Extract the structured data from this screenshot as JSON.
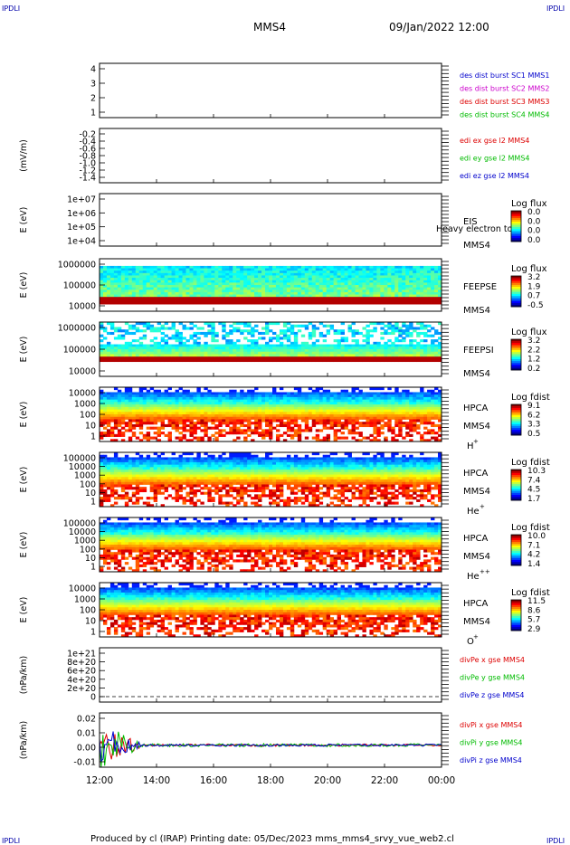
{
  "corner_label": "IPDLI",
  "header": {
    "spacecraft": "MMS4",
    "datetime": "09/Jan/2022 12:00"
  },
  "footer": {
    "text": "Produced by cl (IRAP)   Printing date: 05/Dec/2023   mms_mms4_srvy_vue_web2.cl"
  },
  "colors": {
    "red": "#dd0000",
    "green": "#00bb00",
    "blue": "#0000cc",
    "magenta": "#cc00cc"
  },
  "chart_data": {
    "type": "heatmap",
    "x_axis": {
      "range": [
        "12:00",
        "00:00"
      ],
      "tick_labels": [
        "12:00",
        "14:00",
        "16:00",
        "18:00",
        "20:00",
        "22:00",
        "00:00"
      ]
    },
    "panels": [
      {
        "id": "des-dist",
        "kind": "empty",
        "ylabel": "",
        "yticks": [
          "4",
          "3",
          "2",
          "1"
        ],
        "legend": [
          {
            "text": "des dist burst SC1 MMS1",
            "color": "#0000cc"
          },
          {
            "text": "des dist burst SC2 MMS2",
            "color": "#cc00cc"
          },
          {
            "text": "des dist burst SC3 MMS3",
            "color": "#dd0000"
          },
          {
            "text": "des dist burst SC4 MMS4",
            "color": "#00bb00"
          }
        ]
      },
      {
        "id": "edi",
        "kind": "empty",
        "ylabel": "(mV/m)",
        "yticks": [
          "-0.2",
          "-0.4",
          "-0.6",
          "-0.8",
          "-1.0",
          "-1.2",
          "-1.4"
        ],
        "legend": [
          {
            "text": "edi ex gse l2 MMS4",
            "color": "#dd0000"
          },
          {
            "text": "edi ey gse l2 MMS4",
            "color": "#00bb00"
          },
          {
            "text": "edi ez gse l2 MMS4",
            "color": "#0000cc"
          }
        ]
      },
      {
        "id": "eis",
        "kind": "empty",
        "ylabel": "E (eV)",
        "yticks": [
          "1e+07",
          "1e+06",
          "1e+05",
          "1e+04"
        ],
        "labels": [
          "EIS",
          "MMS4"
        ],
        "overlay": "Heavy electron to",
        "colorbar": {
          "title": "Log flux",
          "ticks": [
            "0.0",
            "0.0",
            "0.0",
            "0.0"
          ]
        }
      },
      {
        "id": "feepse",
        "kind": "spectrogram",
        "ylabel": "E (eV)",
        "yticks": [
          "1000000",
          "100000",
          "10000"
        ],
        "labels": [
          "FEEPSE",
          "MMS4"
        ],
        "colorbar": {
          "title": "Log flux",
          "ticks": [
            "3.2",
            "1.9",
            "0.7",
            "-0.5"
          ]
        }
      },
      {
        "id": "feepsi",
        "kind": "spectrogram",
        "ylabel": "E (eV)",
        "yticks": [
          "1000000",
          "100000",
          "10000"
        ],
        "labels": [
          "FEEPSI",
          "MMS4"
        ],
        "colorbar": {
          "title": "Log flux",
          "ticks": [
            "3.2",
            "2.2",
            "1.2",
            "0.2"
          ]
        }
      },
      {
        "id": "hpca-h",
        "kind": "spectrogram",
        "ylabel": "E (eV)",
        "yticks": [
          "10000",
          "1000",
          "100",
          "10",
          "1"
        ],
        "labels": [
          "HPCA",
          "MMS4"
        ],
        "species": "H",
        "species_sup": "+",
        "colorbar": {
          "title": "Log fdist",
          "ticks": [
            "9.1",
            "6.2",
            "3.3",
            "0.5"
          ]
        }
      },
      {
        "id": "hpca-he",
        "kind": "spectrogram",
        "ylabel": "E (eV)",
        "yticks": [
          "100000",
          "10000",
          "1000",
          "100",
          "10",
          "1"
        ],
        "labels": [
          "HPCA",
          "MMS4"
        ],
        "species": "He",
        "species_sup": "+",
        "colorbar": {
          "title": "Log fdist",
          "ticks": [
            "10.3",
            "7.4",
            "4.5",
            "1.7"
          ]
        }
      },
      {
        "id": "hpca-hepp",
        "kind": "spectrogram",
        "ylabel": "E (eV)",
        "yticks": [
          "100000",
          "10000",
          "1000",
          "100",
          "10",
          "1"
        ],
        "labels": [
          "HPCA",
          "MMS4"
        ],
        "species": "He",
        "species_sup": "++",
        "colorbar": {
          "title": "Log fdist",
          "ticks": [
            "10.0",
            "7.1",
            "4.2",
            "1.4"
          ]
        }
      },
      {
        "id": "hpca-o",
        "kind": "spectrogram",
        "ylabel": "E (eV)",
        "yticks": [
          "10000",
          "1000",
          "100",
          "10",
          "1"
        ],
        "labels": [
          "HPCA",
          "MMS4"
        ],
        "species": "O",
        "species_sup": "+",
        "colorbar": {
          "title": "Log fdist",
          "ticks": [
            "11.5",
            "8.6",
            "5.7",
            "2.9"
          ]
        }
      },
      {
        "id": "divpe",
        "kind": "empty",
        "ylabel": "(nPa/km)",
        "yticks": [
          "1e+21",
          "8e+20",
          "6e+20",
          "4e+20",
          "2e+20",
          "0"
        ],
        "legend": [
          {
            "text": "divPe x gse MMS4",
            "color": "#dd0000"
          },
          {
            "text": "divPe y gse MMS4",
            "color": "#00bb00"
          },
          {
            "text": "divPe z gse MMS4",
            "color": "#0000cc"
          }
        ]
      },
      {
        "id": "divpi",
        "kind": "line",
        "ylabel": "(nPa/km)",
        "yticks": [
          "0.02",
          "0.01",
          "0.00",
          "-0.01"
        ],
        "ylim": [
          -0.015,
          0.022
        ],
        "legend": [
          {
            "text": "divPi x gse MMS4",
            "color": "#dd0000"
          },
          {
            "text": "divPi y gse MMS4",
            "color": "#00bb00"
          },
          {
            "text": "divPi z gse MMS4",
            "color": "#0000cc"
          }
        ]
      }
    ]
  }
}
